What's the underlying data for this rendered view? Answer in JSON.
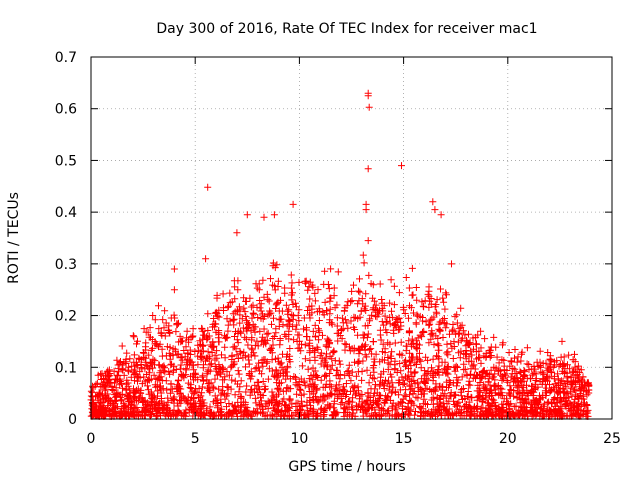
{
  "chart_data": {
    "type": "scatter",
    "title": "Day 300 of 2016, Rate Of TEC Index for receiver mac1",
    "xlabel": "GPS time / hours",
    "ylabel": "ROTI / TECUs",
    "xlim": [
      0,
      25
    ],
    "ylim": [
      0,
      0.7
    ],
    "x_ticks": [
      0,
      5,
      10,
      15,
      20,
      25
    ],
    "y_ticks": [
      0,
      0.1,
      0.2,
      0.3,
      0.4,
      0.5,
      0.6,
      0.7
    ],
    "x_tick_labels": [
      "0",
      "5",
      "10",
      "15",
      "20",
      "25"
    ],
    "y_tick_labels": [
      "0",
      "0.1",
      "0.2",
      "0.3",
      "0.4",
      "0.5",
      "0.6",
      "0.7"
    ],
    "grid": true,
    "marker": "+",
    "color": "#ff0000",
    "notable_points": [
      {
        "x": 5.6,
        "y": 0.448
      },
      {
        "x": 5.5,
        "y": 0.31
      },
      {
        "x": 7.0,
        "y": 0.36
      },
      {
        "x": 7.5,
        "y": 0.395
      },
      {
        "x": 8.3,
        "y": 0.39
      },
      {
        "x": 8.8,
        "y": 0.395
      },
      {
        "x": 9.7,
        "y": 0.415
      },
      {
        "x": 13.3,
        "y": 0.63
      },
      {
        "x": 13.3,
        "y": 0.625
      },
      {
        "x": 13.35,
        "y": 0.603
      },
      {
        "x": 13.3,
        "y": 0.484
      },
      {
        "x": 13.2,
        "y": 0.415
      },
      {
        "x": 13.2,
        "y": 0.405
      },
      {
        "x": 13.3,
        "y": 0.345
      },
      {
        "x": 14.9,
        "y": 0.49
      },
      {
        "x": 16.4,
        "y": 0.42
      },
      {
        "x": 16.5,
        "y": 0.405
      },
      {
        "x": 16.8,
        "y": 0.395
      },
      {
        "x": 17.3,
        "y": 0.3
      },
      {
        "x": 4.0,
        "y": 0.29
      },
      {
        "x": 4.0,
        "y": 0.25
      },
      {
        "x": 22.6,
        "y": 0.15
      },
      {
        "x": 23.2,
        "y": 0.125
      }
    ],
    "envelope": {
      "description": "approximate upper envelope of dense point cloud (hours, ROTI)",
      "x": [
        0,
        1,
        2,
        3,
        4,
        5,
        6,
        7,
        8,
        9,
        10,
        11,
        12,
        13,
        14,
        15,
        16,
        17,
        18,
        19,
        20,
        21,
        22,
        23,
        23.8
      ],
      "y": [
        0.07,
        0.1,
        0.15,
        0.2,
        0.2,
        0.17,
        0.22,
        0.25,
        0.28,
        0.3,
        0.27,
        0.28,
        0.27,
        0.3,
        0.25,
        0.27,
        0.27,
        0.23,
        0.19,
        0.15,
        0.13,
        0.13,
        0.12,
        0.12,
        0.08
      ]
    },
    "x_range_of_points": [
      0,
      23.9
    ]
  }
}
